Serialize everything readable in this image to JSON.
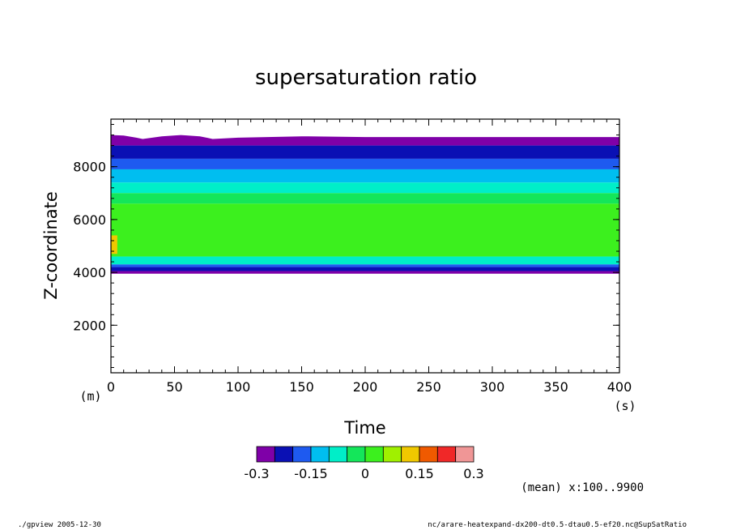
{
  "chart_data": {
    "type": "heatmap",
    "title": "supersaturation ratio",
    "xlabel": "Time",
    "ylabel": "Z-coordinate",
    "x_unit": "(s)",
    "y_unit": "(m)",
    "xlim": [
      0,
      400
    ],
    "ylim": [
      200,
      9800
    ],
    "x_ticks": [
      "0",
      "50",
      "100",
      "150",
      "200",
      "250",
      "300",
      "350",
      "400"
    ],
    "y_ticks": [
      "2000",
      "4000",
      "6000",
      "8000"
    ],
    "colorbar": {
      "levels": [
        -0.3,
        -0.25,
        -0.2,
        -0.15,
        -0.1,
        -0.05,
        0,
        0.05,
        0.1,
        0.15,
        0.2,
        0.25,
        0.3
      ],
      "tick_labels": [
        "-0.3",
        "-0.15",
        "0",
        "0.15",
        "0.3"
      ],
      "colors": [
        "#7f00a8",
        "#0a10b4",
        "#1e5af0",
        "#00bef0",
        "#00eec8",
        "#14e65a",
        "#3cf01e",
        "#a0f000",
        "#f0c800",
        "#f05a00",
        "#f02828",
        "#f09696"
      ]
    },
    "bands": [
      {
        "z_bottom": 8800,
        "z_top": 9200,
        "class": 0
      },
      {
        "z_bottom": 8300,
        "z_top": 8800,
        "class": 1
      },
      {
        "z_bottom": 7900,
        "z_top": 8300,
        "class": 2
      },
      {
        "z_bottom": 7400,
        "z_top": 7900,
        "class": 3
      },
      {
        "z_bottom": 7000,
        "z_top": 7400,
        "class": 4
      },
      {
        "z_bottom": 6600,
        "z_top": 7000,
        "class": 5
      },
      {
        "z_bottom": 4600,
        "z_top": 6600,
        "class": 6
      },
      {
        "z_bottom": 4300,
        "z_top": 4600,
        "class": 4
      },
      {
        "z_bottom": 4200,
        "z_top": 4300,
        "class": 2
      },
      {
        "z_bottom": 4050,
        "z_top": 4200,
        "class": 1
      },
      {
        "z_bottom": 3950,
        "z_top": 4050,
        "class": 0
      }
    ],
    "hotspot": {
      "t": [
        0,
        5
      ],
      "z": [
        4700,
        5400
      ],
      "class": 8
    },
    "top_edge_profile": {
      "t": [
        0,
        10,
        20,
        25,
        40,
        55,
        70,
        80,
        100,
        150,
        200,
        300,
        400
      ],
      "z": [
        9200,
        9180,
        9100,
        9050,
        9150,
        9200,
        9150,
        9050,
        9100,
        9150,
        9120,
        9120,
        9120
      ]
    },
    "footer": {
      "mean_note": "(mean) x:100..9900",
      "left": "./gpview   2005-12-30",
      "right": "nc/arare-heatexpand-dx200-dt0.5-dtau0.5-ef20.nc@SupSatRatio"
    }
  }
}
